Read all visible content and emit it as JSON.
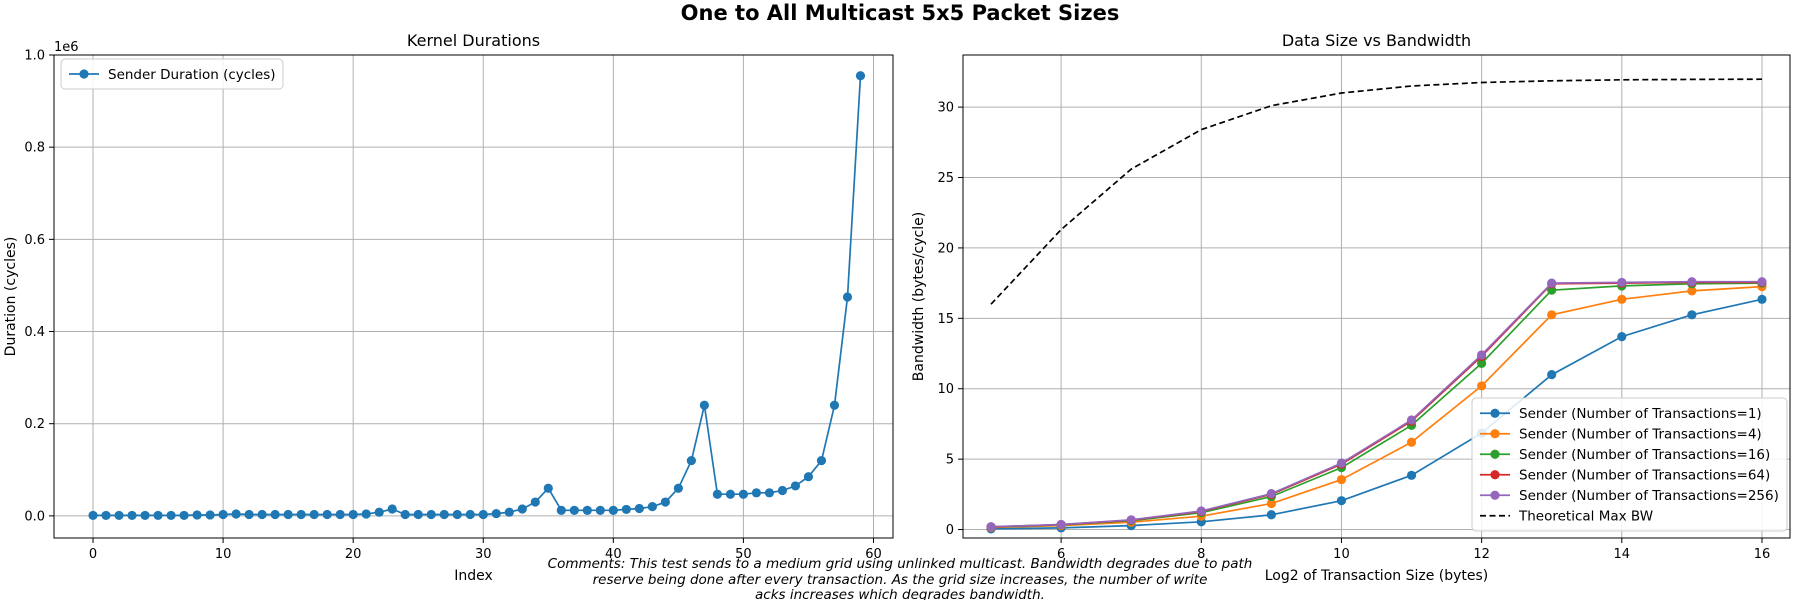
{
  "suptitle": "One to All Multicast 5x5 Packet Sizes",
  "comment": [
    "Comments: This test sends to a medium grid using unlinked multicast. Bandwidth degrades due to path",
    "reserve being done after every transaction. As the grid size increases, the number of write",
    "acks increases which degrades bandwidth."
  ],
  "colors": {
    "blue": "#1f77b4",
    "orange": "#ff7f0e",
    "green": "#2ca02c",
    "red": "#d62728",
    "purple": "#9467bd",
    "black": "#000000",
    "grid": "#b0b0b0"
  },
  "chart_data": [
    {
      "type": "line",
      "title": "Kernel Durations",
      "xlabel": "Index",
      "ylabel": "Duration (cycles)",
      "y_offset_label": "1e6",
      "xlim": [
        -3,
        61.5
      ],
      "ylim": [
        -0.048,
        1.0
      ],
      "xticks": [
        0,
        10,
        20,
        30,
        40,
        50,
        60
      ],
      "yticks": [
        0.0,
        0.2,
        0.4,
        0.6,
        0.8,
        1.0
      ],
      "ytick_labels": [
        "0.0",
        "0.2",
        "0.4",
        "0.6",
        "0.8",
        "1.0"
      ],
      "grid": true,
      "legend_position": "upper left",
      "series": [
        {
          "name": "Sender Duration (cycles)",
          "color": "#1f77b4",
          "marker": "circle",
          "x": [
            0,
            1,
            2,
            3,
            4,
            5,
            6,
            7,
            8,
            9,
            10,
            11,
            12,
            13,
            14,
            15,
            16,
            17,
            18,
            19,
            20,
            21,
            22,
            23,
            24,
            25,
            26,
            27,
            28,
            29,
            30,
            31,
            32,
            33,
            34,
            35,
            36,
            37,
            38,
            39,
            40,
            41,
            42,
            43,
            44,
            45,
            46,
            47,
            48,
            49,
            50,
            51,
            52,
            53,
            54,
            55,
            56,
            57,
            58,
            59
          ],
          "values": [
            0.001,
            0.001,
            0.001,
            0.001,
            0.001,
            0.001,
            0.001,
            0.001,
            0.002,
            0.002,
            0.003,
            0.004,
            0.003,
            0.003,
            0.003,
            0.003,
            0.003,
            0.003,
            0.003,
            0.003,
            0.003,
            0.004,
            0.008,
            0.015,
            0.003,
            0.003,
            0.003,
            0.003,
            0.003,
            0.003,
            0.003,
            0.005,
            0.008,
            0.015,
            0.03,
            0.06,
            0.012,
            0.012,
            0.012,
            0.012,
            0.012,
            0.014,
            0.016,
            0.02,
            0.03,
            0.06,
            0.12,
            0.24,
            0.047,
            0.047,
            0.047,
            0.05,
            0.05,
            0.055,
            0.065,
            0.085,
            0.12,
            0.24,
            0.475,
            0.955
          ]
        }
      ]
    },
    {
      "type": "line",
      "title": "Data Size vs Bandwidth",
      "xlabel": "Log2 of Transaction Size (bytes)",
      "ylabel": "Bandwidth (bytes/cycle)",
      "xlim": [
        4.6,
        16.4
      ],
      "ylim": [
        -0.6,
        33.7
      ],
      "xticks": [
        6,
        8,
        10,
        12,
        14,
        16
      ],
      "yticks": [
        0,
        5,
        10,
        15,
        20,
        25,
        30
      ],
      "grid": true,
      "legend_position": "lower right",
      "x": [
        5,
        6,
        7,
        8,
        9,
        10,
        11,
        12,
        13,
        14,
        15,
        16
      ],
      "series": [
        {
          "name": "Sender (Number of Transactions=1)",
          "color": "#1f77b4",
          "marker": "circle",
          "dashed": false,
          "values": [
            0.05,
            0.12,
            0.28,
            0.55,
            1.05,
            2.05,
            3.85,
            6.85,
            11.0,
            13.7,
            15.25,
            16.35
          ]
        },
        {
          "name": "Sender (Number of Transactions=4)",
          "color": "#ff7f0e",
          "marker": "circle",
          "dashed": false,
          "values": [
            0.15,
            0.28,
            0.52,
            0.95,
            1.85,
            3.55,
            6.2,
            10.2,
            15.25,
            16.35,
            16.95,
            17.25
          ]
        },
        {
          "name": "Sender (Number of Transactions=16)",
          "color": "#2ca02c",
          "marker": "circle",
          "dashed": false,
          "values": [
            0.18,
            0.33,
            0.63,
            1.2,
            2.35,
            4.4,
            7.4,
            11.8,
            17.0,
            17.3,
            17.45,
            17.5
          ]
        },
        {
          "name": "Sender (Number of Transactions=64)",
          "color": "#d62728",
          "marker": "circle",
          "dashed": false,
          "values": [
            0.19,
            0.35,
            0.67,
            1.28,
            2.5,
            4.65,
            7.7,
            12.3,
            17.45,
            17.5,
            17.55,
            17.55
          ]
        },
        {
          "name": "Sender (Number of Transactions=256)",
          "color": "#9467bd",
          "marker": "circle",
          "dashed": false,
          "values": [
            0.2,
            0.36,
            0.69,
            1.32,
            2.55,
            4.72,
            7.78,
            12.4,
            17.5,
            17.55,
            17.6,
            17.6
          ]
        },
        {
          "name": "Theoretical Max BW",
          "color": "#000000",
          "marker": "none",
          "dashed": true,
          "values": [
            16.0,
            21.3,
            25.6,
            28.4,
            30.1,
            31.0,
            31.5,
            31.75,
            31.87,
            31.94,
            31.97,
            31.98
          ]
        }
      ]
    }
  ]
}
